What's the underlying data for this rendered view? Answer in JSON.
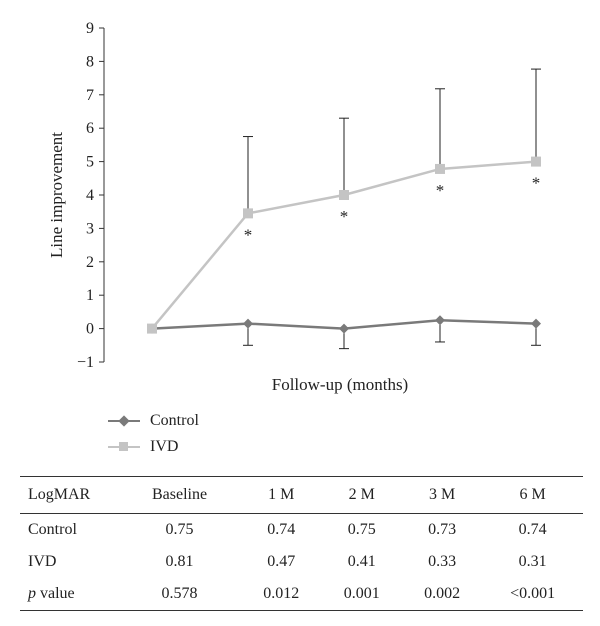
{
  "chart_data": {
    "type": "line",
    "xlabel": "Follow-up (months)",
    "ylabel": "Line improvement",
    "ylim": [
      -1,
      9
    ],
    "yticks": [
      -1,
      0,
      1,
      2,
      3,
      4,
      5,
      6,
      7,
      8,
      9
    ],
    "ytick_labels": [
      "−1",
      "0",
      "1",
      "2",
      "3",
      "4",
      "5",
      "6",
      "7",
      "8",
      "9"
    ],
    "categories": [
      "Baseline",
      "1M",
      "2M",
      "3M",
      "6M"
    ],
    "grid": false,
    "legend_position": "bottom-left",
    "series": [
      {
        "name": "Control",
        "color": "#7a7a7a",
        "marker": "diamond",
        "values": [
          0,
          0.15,
          0,
          0.25,
          0.15
        ],
        "error_upper": [
          0,
          0,
          0,
          0,
          0
        ],
        "error_lower": [
          0,
          0.65,
          0.6,
          0.65,
          0.65
        ]
      },
      {
        "name": "IVD",
        "color": "#c4c4c4",
        "marker": "square",
        "values": [
          0,
          3.45,
          4.0,
          4.78,
          5.0
        ],
        "error_upper": [
          0,
          2.3,
          2.3,
          2.4,
          2.77
        ],
        "error_lower": [
          0,
          0,
          0,
          0,
          0
        ],
        "significance": [
          "",
          "*",
          "*",
          "*",
          "*"
        ]
      }
    ]
  },
  "table": {
    "header_label": "LogMAR",
    "columns": [
      "Baseline",
      "1 M",
      "2 M",
      "3 M",
      "6 M"
    ],
    "rows": [
      {
        "label_prefix": "",
        "label_suffix": "Control",
        "values": [
          "0.75",
          "0.74",
          "0.75",
          "0.73",
          "0.74"
        ]
      },
      {
        "label_prefix": "",
        "label_suffix": "IVD",
        "values": [
          "0.81",
          "0.47",
          "0.41",
          "0.33",
          "0.31"
        ]
      },
      {
        "label_prefix": "p",
        "label_suffix": " value",
        "values": [
          "0.578",
          "0.012",
          "0.001",
          "0.002",
          "<0.001"
        ]
      }
    ]
  }
}
